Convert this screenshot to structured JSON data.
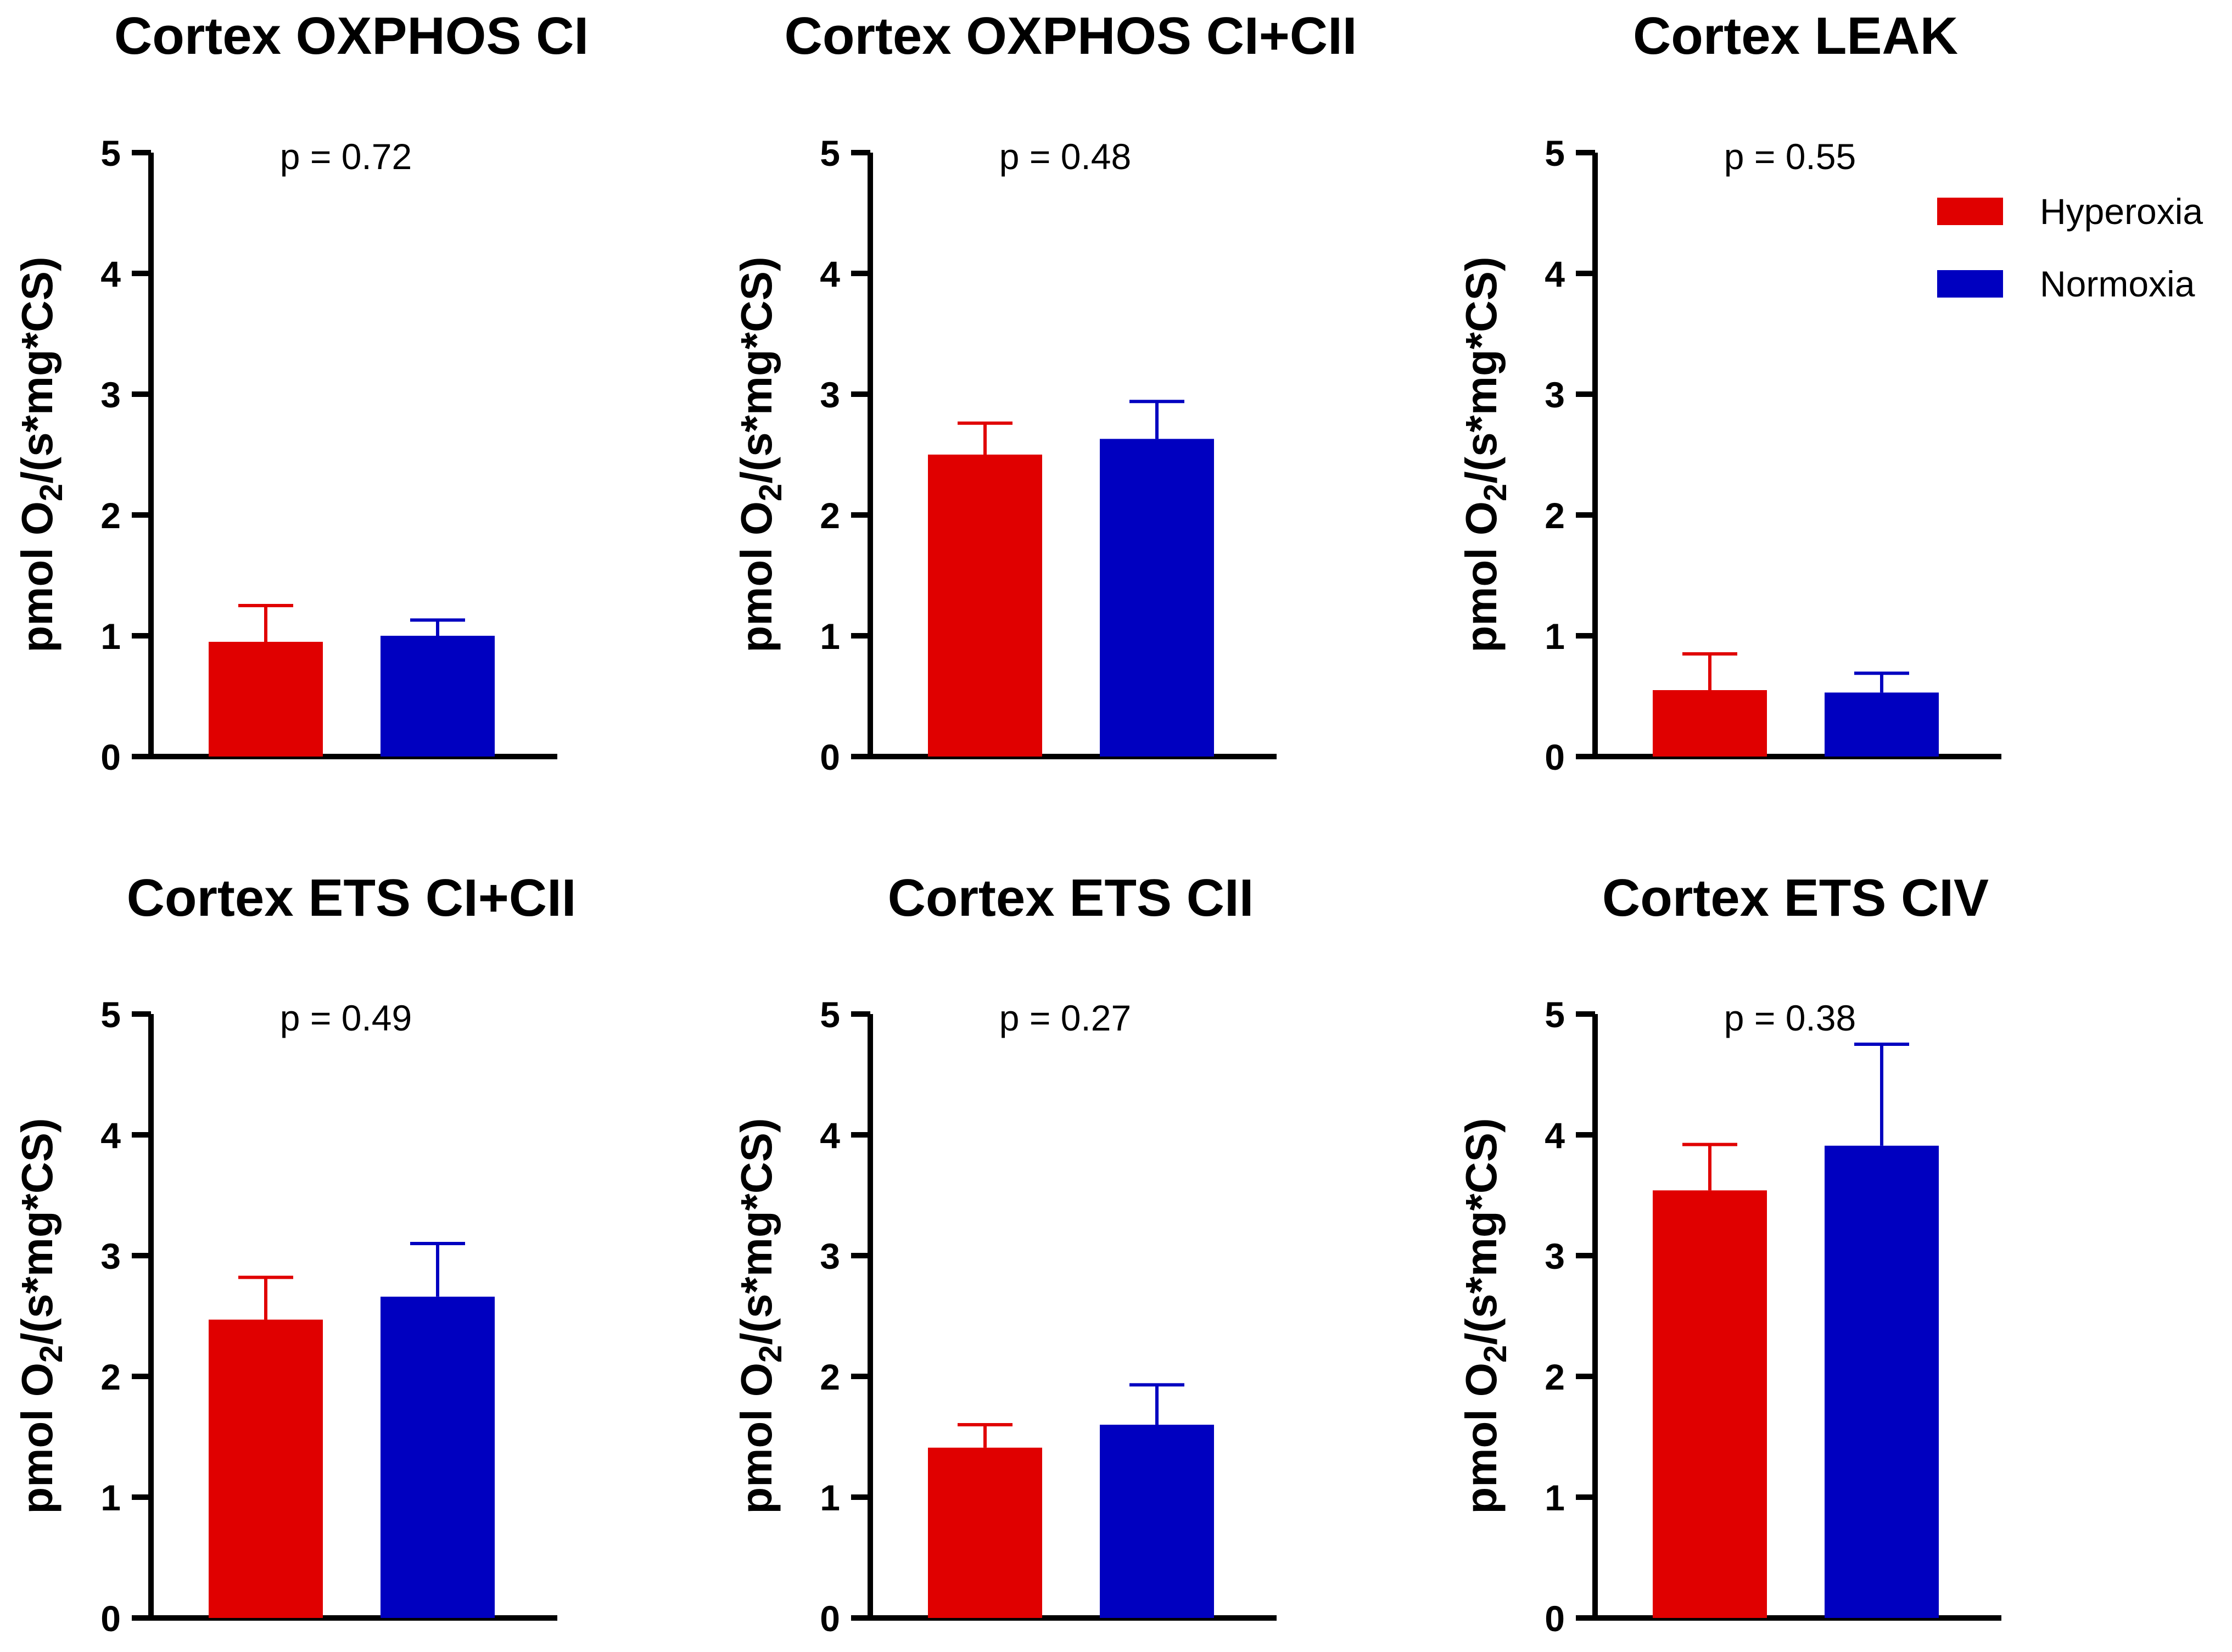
{
  "colors": {
    "Hyperoxia": "#e00000",
    "Normoxia": "#0000c0"
  },
  "legend": [
    {
      "label": "Hyperoxia",
      "color": "#e00000"
    },
    {
      "label": "Normoxia",
      "color": "#0000c0"
    }
  ],
  "ylabel_parts": {
    "pre": "pmol O",
    "sub": "2",
    "post": "/(s*mg*CS)"
  },
  "chart_data": [
    {
      "type": "bar",
      "title": "Cortex OXPHOS CI",
      "p_value": "p = 0.72",
      "categories": [
        "Hyperoxia",
        "Normoxia"
      ],
      "values": [
        0.95,
        1.0
      ],
      "errors": [
        0.3,
        0.13
      ],
      "ylim": [
        0,
        5
      ],
      "yticks": [
        "0",
        "1",
        "2",
        "3",
        "4",
        "5"
      ],
      "ylabel": "pmol O2/(s*mg*CS)"
    },
    {
      "type": "bar",
      "title": "Cortex OXPHOS CI+CII",
      "p_value": "p = 0.48",
      "categories": [
        "Hyperoxia",
        "Normoxia"
      ],
      "values": [
        2.5,
        2.63
      ],
      "errors": [
        0.26,
        0.31
      ],
      "ylim": [
        0,
        5
      ],
      "yticks": [
        "0",
        "1",
        "2",
        "3",
        "4",
        "5"
      ],
      "ylabel": "pmol O2/(s*mg*CS)"
    },
    {
      "type": "bar",
      "title": "Cortex LEAK",
      "p_value": "p = 0.55",
      "categories": [
        "Hyperoxia",
        "Normoxia"
      ],
      "values": [
        0.55,
        0.53
      ],
      "errors": [
        0.3,
        0.16
      ],
      "ylim": [
        0,
        5
      ],
      "yticks": [
        "0",
        "1",
        "2",
        "3",
        "4",
        "5"
      ],
      "ylabel": "pmol O2/(s*mg*CS)"
    },
    {
      "type": "bar",
      "title": "Cortex ETS CI+CII",
      "p_value": "p = 0.49",
      "categories": [
        "Hyperoxia",
        "Normoxia"
      ],
      "values": [
        2.47,
        2.66
      ],
      "errors": [
        0.35,
        0.44
      ],
      "ylim": [
        0,
        5
      ],
      "yticks": [
        "0",
        "1",
        "2",
        "3",
        "4",
        "5"
      ],
      "ylabel": "pmol O2/(s*mg*CS)"
    },
    {
      "type": "bar",
      "title": "Cortex ETS CII",
      "p_value": "p = 0.27",
      "categories": [
        "Hyperoxia",
        "Normoxia"
      ],
      "values": [
        1.41,
        1.6
      ],
      "errors": [
        0.19,
        0.33
      ],
      "ylim": [
        0,
        5
      ],
      "yticks": [
        "0",
        "1",
        "2",
        "3",
        "4",
        "5"
      ],
      "ylabel": "pmol O2/(s*mg*CS)"
    },
    {
      "type": "bar",
      "title": "Cortex ETS CIV",
      "p_value": "p = 0.38",
      "categories": [
        "Hyperoxia",
        "Normoxia"
      ],
      "values": [
        3.54,
        3.91
      ],
      "errors": [
        0.38,
        0.84
      ],
      "ylim": [
        0,
        5
      ],
      "yticks": [
        "0",
        "1",
        "2",
        "3",
        "4",
        "5"
      ],
      "ylabel": "pmol O2/(s*mg*CS)"
    }
  ]
}
